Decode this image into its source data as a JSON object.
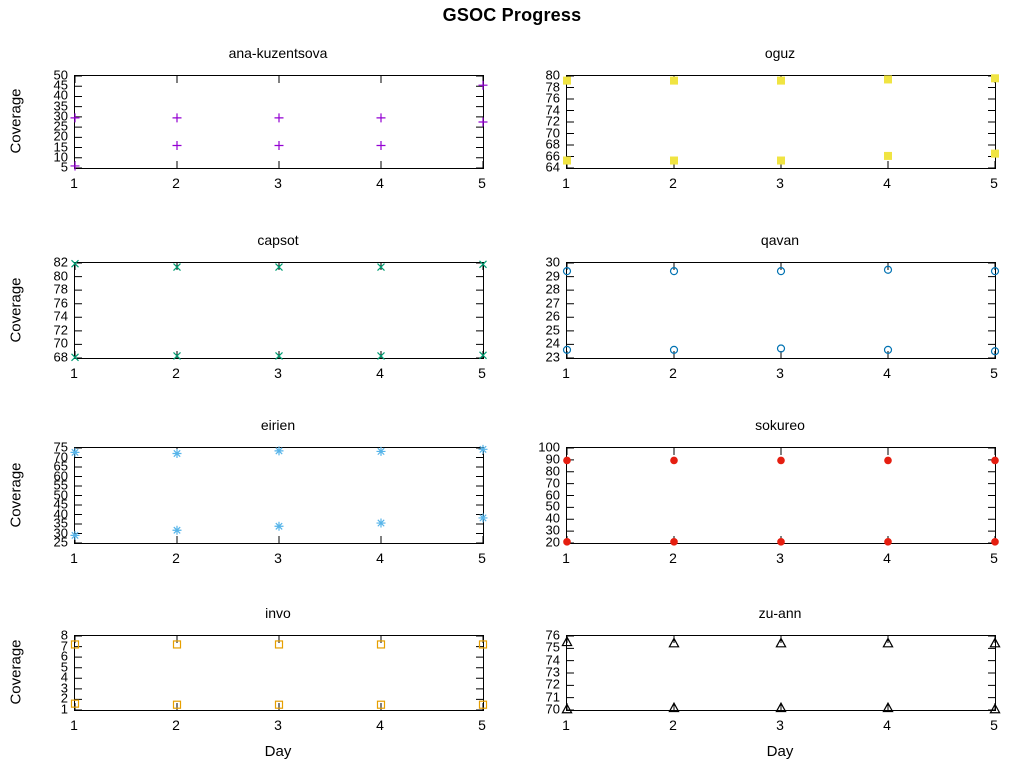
{
  "page_title": "GSOC Progress",
  "axes": {
    "xlabel": "Day",
    "ylabel": "Coverage"
  },
  "chart_data": [
    {
      "type": "scatter",
      "title": "ana-kuzentsova",
      "ylabel": "Coverage",
      "xlabel": "",
      "marker": "plus",
      "color": "#9400D3",
      "xlim": [
        1,
        5
      ],
      "ylim": [
        5,
        50
      ],
      "xticks": [
        1,
        2,
        3,
        4,
        5
      ],
      "yticks": [
        5,
        10,
        15,
        20,
        25,
        30,
        35,
        40,
        45,
        50
      ],
      "x": [
        1,
        2,
        3,
        4,
        5
      ],
      "series": [
        {
          "values": [
            29.5,
            29.5,
            29.5,
            29.5,
            45.5
          ]
        },
        {
          "values": [
            6,
            16,
            16,
            16,
            27.5
          ]
        }
      ]
    },
    {
      "type": "scatter",
      "title": "oguz",
      "ylabel": "",
      "xlabel": "",
      "marker": "square-filled",
      "color": "#F0E442",
      "xlim": [
        1,
        5
      ],
      "ylim": [
        64,
        80
      ],
      "xticks": [
        1,
        2,
        3,
        4,
        5
      ],
      "yticks": [
        64,
        66,
        68,
        70,
        72,
        74,
        76,
        78,
        80
      ],
      "x": [
        1,
        2,
        3,
        4,
        5
      ],
      "series": [
        {
          "values": [
            79.2,
            79.2,
            79.2,
            79.4,
            79.6
          ]
        },
        {
          "values": [
            65.3,
            65.3,
            65.3,
            66.1,
            66.5
          ]
        }
      ]
    },
    {
      "type": "scatter",
      "title": "capsot",
      "ylabel": "Coverage",
      "xlabel": "",
      "marker": "x",
      "color": "#009E73",
      "xlim": [
        1,
        5
      ],
      "ylim": [
        68,
        82
      ],
      "xticks": [
        1,
        2,
        3,
        4,
        5
      ],
      "yticks": [
        68,
        70,
        72,
        74,
        76,
        78,
        80,
        82
      ],
      "x": [
        1,
        2,
        3,
        4,
        5
      ],
      "series": [
        {
          "values": [
            81.9,
            81.4,
            81.4,
            81.4,
            81.8
          ]
        },
        {
          "values": [
            68.1,
            68.3,
            68.3,
            68.3,
            68.4
          ]
        }
      ]
    },
    {
      "type": "scatter",
      "title": "qavan",
      "ylabel": "",
      "xlabel": "",
      "marker": "circle-open",
      "color": "#0072B2",
      "xlim": [
        1,
        5
      ],
      "ylim": [
        23,
        30
      ],
      "xticks": [
        1,
        2,
        3,
        4,
        5
      ],
      "yticks": [
        23,
        24,
        25,
        26,
        27,
        28,
        29,
        30
      ],
      "x": [
        1,
        2,
        3,
        4,
        5
      ],
      "series": [
        {
          "values": [
            29.4,
            29.4,
            29.4,
            29.5,
            29.4
          ]
        },
        {
          "values": [
            23.6,
            23.6,
            23.7,
            23.6,
            23.5
          ]
        }
      ]
    },
    {
      "type": "scatter",
      "title": "eirien",
      "ylabel": "Coverage",
      "xlabel": "",
      "marker": "asterisk",
      "color": "#56B4E9",
      "xlim": [
        1,
        5
      ],
      "ylim": [
        25,
        75
      ],
      "xticks": [
        1,
        2,
        3,
        4,
        5
      ],
      "yticks": [
        25,
        30,
        35,
        40,
        45,
        50,
        55,
        60,
        65,
        70,
        75
      ],
      "x": [
        1,
        2,
        3,
        4,
        5
      ],
      "series": [
        {
          "values": [
            72.7,
            72.1,
            73.5,
            73.2,
            74.3
          ]
        },
        {
          "values": [
            29,
            31.7,
            33.8,
            35.5,
            38.2
          ]
        }
      ]
    },
    {
      "type": "scatter",
      "title": "sokureo",
      "ylabel": "",
      "xlabel": "",
      "marker": "circle-filled",
      "color": "#E51E10",
      "xlim": [
        1,
        5
      ],
      "ylim": [
        20,
        100
      ],
      "xticks": [
        1,
        2,
        3,
        4,
        5
      ],
      "yticks": [
        20,
        30,
        40,
        50,
        60,
        70,
        80,
        90,
        100
      ],
      "x": [
        1,
        2,
        3,
        4,
        5
      ],
      "series": [
        {
          "values": [
            89.5,
            89.5,
            89.5,
            89.5,
            89.5
          ]
        },
        {
          "values": [
            21,
            21,
            21,
            21,
            21
          ]
        }
      ]
    },
    {
      "type": "scatter",
      "title": "invo",
      "ylabel": "Coverage",
      "xlabel": "Day",
      "marker": "square-open",
      "color": "#E69F00",
      "xlim": [
        1,
        5
      ],
      "ylim": [
        1,
        8
      ],
      "xticks": [
        1,
        2,
        3,
        4,
        5
      ],
      "yticks": [
        1,
        2,
        3,
        4,
        5,
        6,
        7,
        8
      ],
      "x": [
        1,
        2,
        3,
        4,
        5
      ],
      "series": [
        {
          "values": [
            7.2,
            7.2,
            7.2,
            7.2,
            7.2
          ]
        },
        {
          "values": [
            1.6,
            1.5,
            1.5,
            1.5,
            1.5
          ]
        }
      ]
    },
    {
      "type": "scatter",
      "title": "zu-ann",
      "ylabel": "",
      "xlabel": "Day",
      "marker": "triangle-open",
      "color": "#000000",
      "xlim": [
        1,
        5
      ],
      "ylim": [
        70,
        76
      ],
      "xticks": [
        1,
        2,
        3,
        4,
        5
      ],
      "yticks": [
        70,
        71,
        72,
        73,
        74,
        75,
        76
      ],
      "x": [
        1,
        2,
        3,
        4,
        5
      ],
      "series": [
        {
          "values": [
            75.5,
            75.4,
            75.4,
            75.4,
            75.4
          ]
        },
        {
          "values": [
            70.05,
            70.15,
            70.15,
            70.15,
            70.05
          ]
        }
      ]
    }
  ]
}
